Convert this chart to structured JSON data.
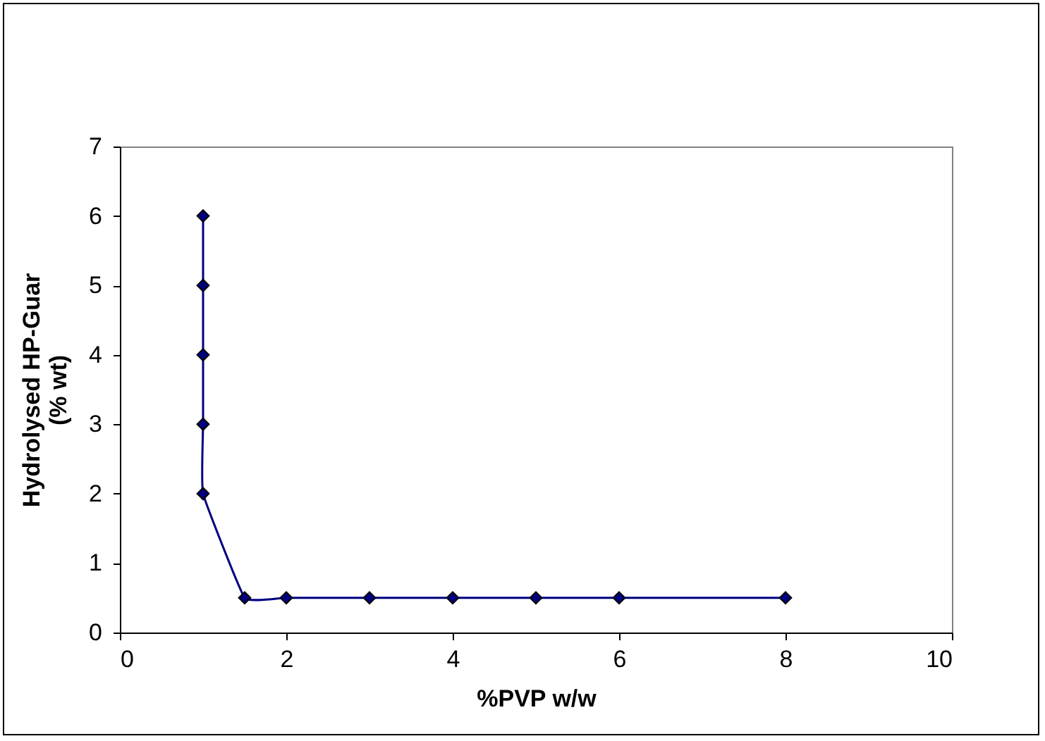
{
  "chart_data": {
    "type": "line",
    "xlabel": "%PVP w/w",
    "ylabel": "Hydrolysed HP-Guar\n(% wt)",
    "x": [
      1,
      1,
      1,
      1,
      1,
      1.5,
      2,
      3,
      4,
      5,
      6,
      8
    ],
    "series": [
      {
        "color": "#000080",
        "values": [
          6,
          5,
          4,
          3,
          2,
          0.5,
          0.5,
          0.5,
          0.5,
          0.5,
          0.5,
          0.5
        ]
      }
    ],
    "xlim": [
      0,
      10
    ],
    "xticks": [
      0,
      2,
      4,
      6,
      8,
      10
    ],
    "ylim": [
      0,
      7
    ],
    "yticks": [
      0,
      1,
      2,
      3,
      4,
      5,
      6,
      7
    ],
    "marker": "diamond",
    "grid": false
  }
}
